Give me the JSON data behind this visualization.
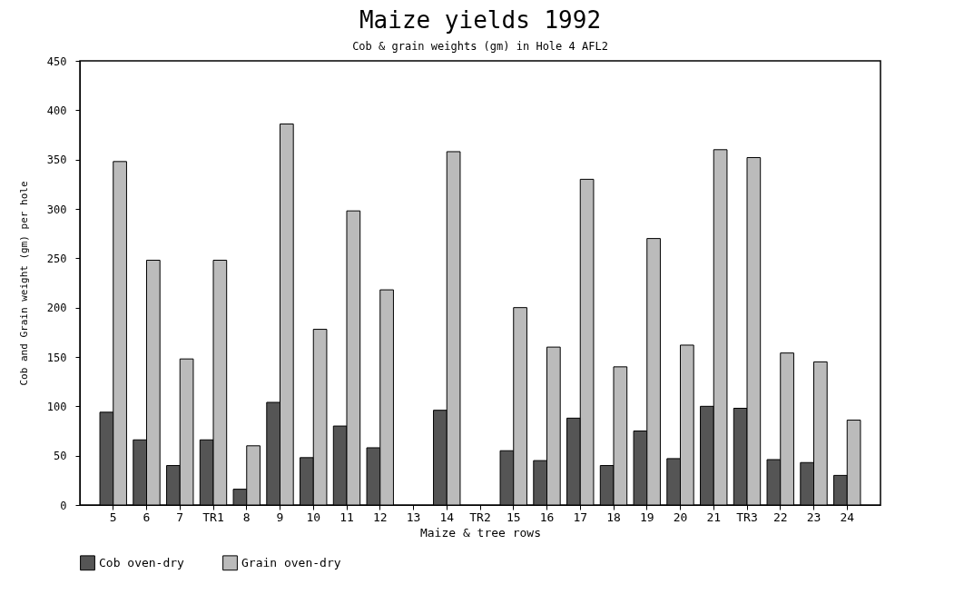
{
  "chart_data": {
    "type": "bar",
    "title": "Maize yields 1992",
    "subtitle": "Cob & grain weights (gm) in Hole 4 AFL2",
    "xlabel": "Maize & tree rows",
    "ylabel": "Cob and Grain weight (gm) per hole",
    "categories": [
      "5",
      "6",
      "7",
      "TR1",
      "8",
      "9",
      "10",
      "11",
      "12",
      "13",
      "14",
      "TR2",
      "15",
      "16",
      "17",
      "18",
      "19",
      "20",
      "21",
      "TR3",
      "22",
      "23",
      "24"
    ],
    "series": [
      {
        "name": "Cob oven-dry",
        "color": "#555555",
        "values": [
          94,
          66,
          40,
          66,
          16,
          104,
          48,
          80,
          58,
          null,
          96,
          null,
          55,
          45,
          88,
          40,
          75,
          47,
          100,
          98,
          46,
          43,
          30
        ]
      },
      {
        "name": "Grain oven-dry",
        "color": "#bbbbbb",
        "values": [
          348,
          248,
          148,
          248,
          60,
          386,
          178,
          298,
          218,
          null,
          358,
          null,
          200,
          160,
          330,
          140,
          270,
          162,
          360,
          352,
          154,
          145,
          86
        ]
      }
    ],
    "ylim": [
      0,
      450
    ],
    "yticks": [
      0,
      50,
      100,
      150,
      200,
      250,
      300,
      350,
      400,
      450
    ],
    "grid": false,
    "legend": "bottom"
  }
}
